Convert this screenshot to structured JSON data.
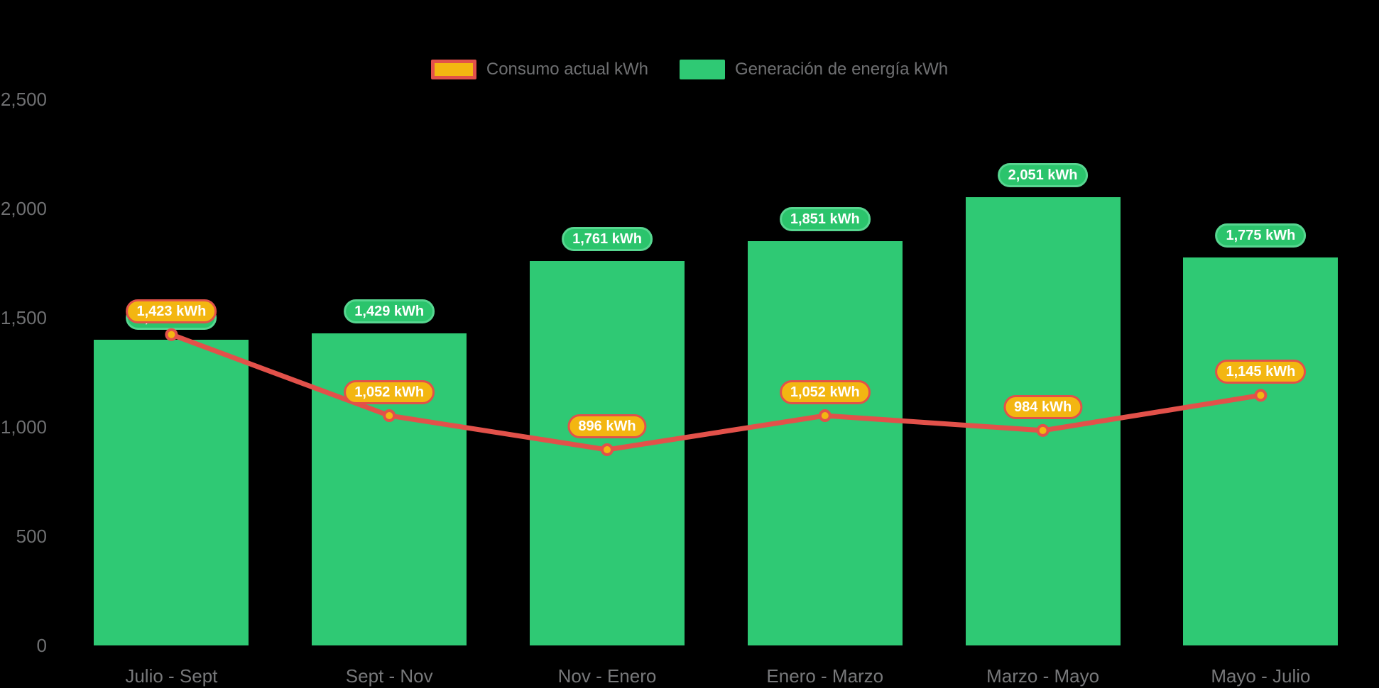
{
  "legend": {
    "items": [
      {
        "label": "Consumo actual kWh",
        "swatch": "consumption-swatch",
        "color": "#f3b611",
        "border": "#e2514a"
      },
      {
        "label": "Generación de energía kWh",
        "swatch": "generation-swatch",
        "color": "#2fc974",
        "border": null
      }
    ]
  },
  "chart_data": {
    "type": "bar",
    "subtype": "combo-bar-line",
    "categories": [
      "Julio - Sept",
      "Sept - Nov",
      "Nov - Enero",
      "Enero - Marzo",
      "Marzo - Mayo",
      "Mayo - Julio"
    ],
    "series": [
      {
        "name": "Generación de energía kWh",
        "type": "bar",
        "values": [
          1398,
          1429,
          1761,
          1851,
          2051,
          1775
        ],
        "labels": [
          "1,398 kWh",
          "1,429 kWh",
          "1,761 kWh",
          "1,851 kWh",
          "2,051 kWh",
          "1,775 kWh"
        ],
        "color": "#2fc974"
      },
      {
        "name": "Consumo actual kWh",
        "type": "line",
        "values": [
          1423,
          1052,
          896,
          1052,
          984,
          1145
        ],
        "labels": [
          "1,423 kWh",
          "1,052 kWh",
          "896 kWh",
          "1,052 kWh",
          "984 kWh",
          "1,145 kWh"
        ],
        "color": "#e2514a",
        "marker_fill": "#f3b611",
        "marker_stroke": "#e2514a"
      }
    ],
    "ylim": [
      0,
      2500
    ],
    "yticks": [
      0,
      500,
      1000,
      1500,
      2000,
      2500
    ],
    "ytick_labels": [
      "0",
      "500",
      "1,000",
      "1,500",
      "2,000",
      "2,500"
    ],
    "grid": false,
    "legend_position": "top-center",
    "background": "#000000"
  }
}
